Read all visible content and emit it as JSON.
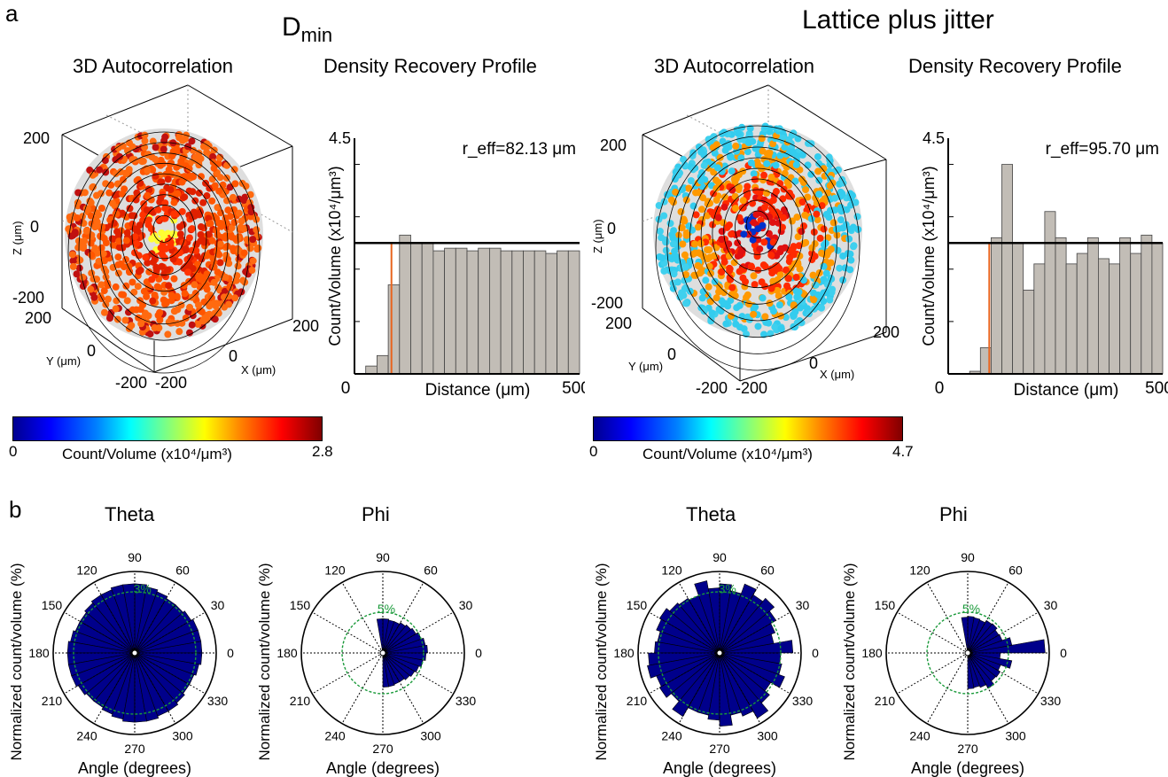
{
  "panel_a": {
    "label": "a",
    "left": {
      "title_main": "D",
      "title_sub": "min",
      "autocorr_title": "3D Autocorrelation",
      "drp_title": "Density Recovery Profile",
      "colorbar_min": "0",
      "colorbar_max": "2.8",
      "colorbar_label": "Count/Volume (x10⁴/μm³)"
    },
    "right": {
      "title": "Lattice plus jitter",
      "autocorr_title": "3D Autocorrelation",
      "drp_title": "Density Recovery Profile",
      "colorbar_min": "0",
      "colorbar_max": "4.7",
      "colorbar_label": "Count/Volume (x10⁴/μm³)"
    },
    "axes3d": {
      "zlabel": "Z (μm)",
      "ylabel": "Y (μm)",
      "xlabel": "X (μm)",
      "ticks": [
        "200",
        "0",
        "-200"
      ]
    }
  },
  "panel_b": {
    "label": "b",
    "theta_title": "Theta",
    "phi_title": "Phi",
    "ylabel": "Normalized count/volume (%)",
    "xlabel": "Angle (degrees)",
    "angle_labels": [
      "0",
      "30",
      "60",
      "90",
      "120",
      "150",
      "180",
      "210",
      "240",
      "270",
      "300",
      "330"
    ]
  },
  "chart_data": [
    {
      "type": "bar",
      "name": "drp-dmin",
      "annotation": "r_eff=82.13 μm",
      "xlabel": "Distance (μm)",
      "ylabel": "Count/Volume (x10⁴/μm³)",
      "xlim": [
        0,
        500
      ],
      "ylim": [
        0,
        4.5
      ],
      "x_ticks": [
        "0",
        "500"
      ],
      "y_ticks": [
        "4.5"
      ],
      "bin_width": 25,
      "values": [
        0,
        0.15,
        0.35,
        1.7,
        2.65,
        2.5,
        2.5,
        2.35,
        2.4,
        2.4,
        2.35,
        2.4,
        2.4,
        2.35,
        2.35,
        2.35,
        2.35,
        2.3,
        2.35,
        2.35
      ],
      "mean_line": 2.5,
      "r_eff_line": 82.13
    },
    {
      "type": "bar",
      "name": "drp-lattice",
      "annotation": "r_eff=95.70 μm",
      "xlabel": "Distance (μm)",
      "ylabel": "Count/Volume (x10⁴/μm³)",
      "xlim": [
        0,
        500
      ],
      "ylim": [
        0,
        4.5
      ],
      "x_ticks": [
        "0",
        "500"
      ],
      "y_ticks": [
        "4.5"
      ],
      "bin_width": 25,
      "values": [
        0,
        0,
        0.05,
        0.5,
        2.6,
        4.0,
        2.5,
        1.6,
        2.1,
        3.1,
        2.6,
        2.1,
        2.3,
        2.6,
        2.2,
        2.1,
        2.6,
        2.3,
        2.65,
        2.5
      ],
      "mean_line": 2.5,
      "r_eff_line": 95.7
    },
    {
      "type": "polar-bar",
      "name": "theta-dmin",
      "ring_label": "3%",
      "ring_value": 3,
      "rmax": 4,
      "bins_deg": 10,
      "values": [
        3.3,
        3.3,
        3.3,
        3.2,
        3.1,
        3.1,
        3.2,
        3.3,
        3.4,
        3.4,
        3.4,
        3.3,
        3.3,
        3.2,
        3.1,
        3.1,
        3.2,
        3.3,
        3.3,
        3.3,
        3.3,
        3.2,
        3.1,
        3.1,
        3.2,
        3.3,
        3.4,
        3.4,
        3.4,
        3.3,
        3.3,
        3.2,
        3.1,
        3.1,
        3.2,
        3.3
      ]
    },
    {
      "type": "polar-bar",
      "name": "phi-dmin",
      "ring_label": "5%",
      "ring_value": 5,
      "rmax": 10,
      "bins_deg": 10,
      "values": [
        5.5,
        5.3,
        5.0,
        4.7,
        4.5,
        4.3,
        4.1,
        4.1,
        4.2,
        4.2,
        0,
        0,
        0,
        0,
        0,
        0,
        0,
        0,
        0,
        0,
        0,
        0,
        0,
        0,
        0,
        0,
        0,
        4.2,
        4.2,
        4.1,
        4.1,
        4.3,
        4.5,
        4.7,
        5.0,
        5.3
      ]
    },
    {
      "type": "polar-bar",
      "name": "theta-lattice",
      "ring_label": "3%",
      "ring_value": 3,
      "rmax": 4,
      "bins_deg": 10,
      "values": [
        3.6,
        2.7,
        2.9,
        3.2,
        3.5,
        3.3,
        3.6,
        3.1,
        3.4,
        3.2,
        3.6,
        3.0,
        3.1,
        3.2,
        3.4,
        3.3,
        3.1,
        3.2,
        3.5,
        3.6,
        3.3,
        3.4,
        3.1,
        3.6,
        3.1,
        3.1,
        3.3,
        3.6,
        3.1,
        3.3,
        3.7,
        3.2,
        2.9,
        3.4,
        3.1,
        3.0
      ]
    },
    {
      "type": "polar-bar",
      "name": "phi-lattice",
      "ring_label": "5%",
      "ring_value": 5,
      "rmax": 10,
      "bins_deg": 10,
      "values": [
        9.5,
        5.5,
        4.5,
        4.4,
        4.7,
        4.6,
        4.3,
        4.4,
        4.5,
        4.4,
        0,
        0,
        0,
        0,
        0,
        0,
        0,
        0,
        0,
        0,
        0,
        0,
        0,
        0,
        0,
        0,
        0,
        4.4,
        4.3,
        4.5,
        5.0,
        4.5,
        4.6,
        4.3,
        5.5,
        4.0
      ]
    }
  ],
  "colors": {
    "bar_gray": "#c2bdb6",
    "polar_blue": "#00008b",
    "ring_green": "#1a9a3a",
    "vline_orange": "#e8641e"
  }
}
